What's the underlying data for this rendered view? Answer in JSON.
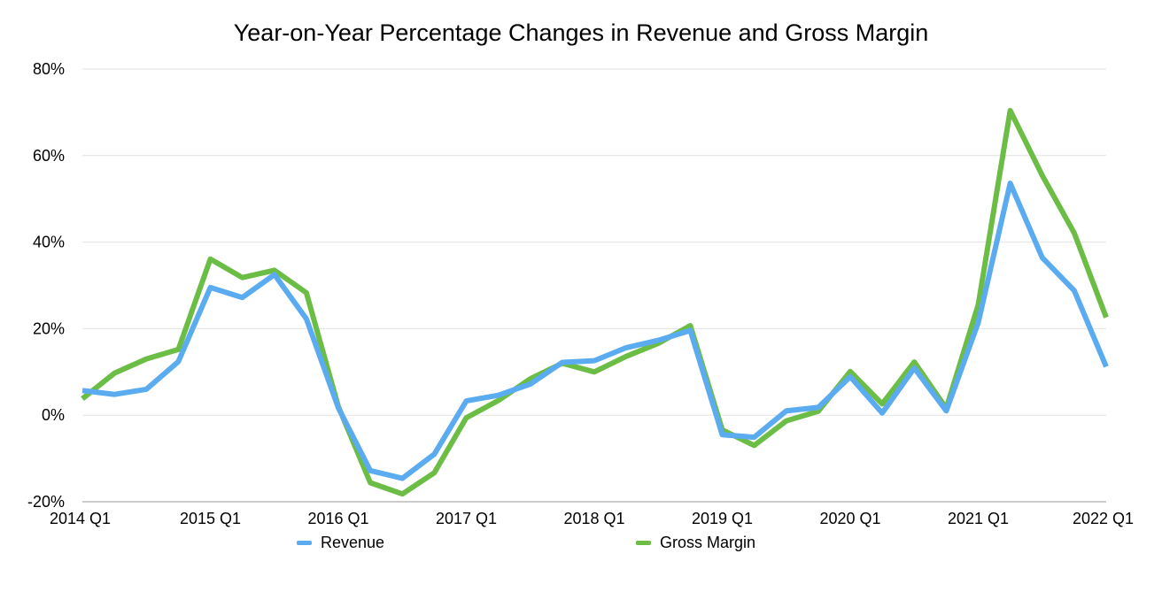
{
  "chart_data": {
    "type": "line",
    "title": "Year-on-Year Percentage Changes in Revenue and Gross Margin",
    "xlabel": "",
    "ylabel": "",
    "ylim": [
      -20,
      80
    ],
    "yticks": [
      "80%",
      "60%",
      "40%",
      "20%",
      "0%",
      "-20%"
    ],
    "ytick_values": [
      80,
      60,
      40,
      20,
      0,
      -20
    ],
    "xtick_labels": [
      "2014 Q1",
      "2015 Q1",
      "2016 Q1",
      "2017 Q1",
      "2018 Q1",
      "2019 Q1",
      "2020 Q1",
      "2021 Q1",
      "2022 Q1"
    ],
    "x": [
      "2014 Q1",
      "2014 Q2",
      "2014 Q3",
      "2014 Q4",
      "2015 Q1",
      "2015 Q2",
      "2015 Q3",
      "2015 Q4",
      "2016 Q1",
      "2016 Q2",
      "2016 Q3",
      "2016 Q4",
      "2017 Q1",
      "2017 Q2",
      "2017 Q3",
      "2017 Q4",
      "2018 Q1",
      "2018 Q2",
      "2018 Q3",
      "2018 Q4",
      "2019 Q1",
      "2019 Q2",
      "2019 Q3",
      "2019 Q4",
      "2020 Q1",
      "2020 Q2",
      "2020 Q3",
      "2020 Q4",
      "2021 Q1",
      "2021 Q2",
      "2021 Q3",
      "2021 Q4",
      "2022 Q1"
    ],
    "grid": true,
    "legend_position": "bottom",
    "series": [
      {
        "name": "Revenue",
        "color": "#5aabf0",
        "values": [
          5.7,
          4.8,
          6.0,
          12.4,
          29.5,
          27.2,
          32.5,
          22.3,
          1.7,
          -12.8,
          -14.6,
          -9.0,
          3.3,
          4.6,
          7.2,
          12.2,
          12.6,
          15.6,
          17.3,
          19.6,
          -4.5,
          -5.1,
          1.0,
          1.8,
          8.9,
          0.5,
          10.9,
          1.0,
          21.4,
          53.6,
          36.4,
          28.8,
          11.2
        ]
      },
      {
        "name": "Gross Margin",
        "color": "#6cbd45",
        "values": [
          3.8,
          9.7,
          13.0,
          15.2,
          36.1,
          31.8,
          33.5,
          28.3,
          2.0,
          -15.6,
          -18.2,
          -13.3,
          -0.6,
          3.4,
          8.4,
          12.0,
          10.0,
          13.6,
          16.6,
          20.7,
          -3.4,
          -7.0,
          -1.3,
          0.9,
          10.1,
          2.6,
          12.3,
          1.6,
          25.5,
          70.4,
          55.4,
          42.1,
          22.6
        ]
      }
    ]
  }
}
